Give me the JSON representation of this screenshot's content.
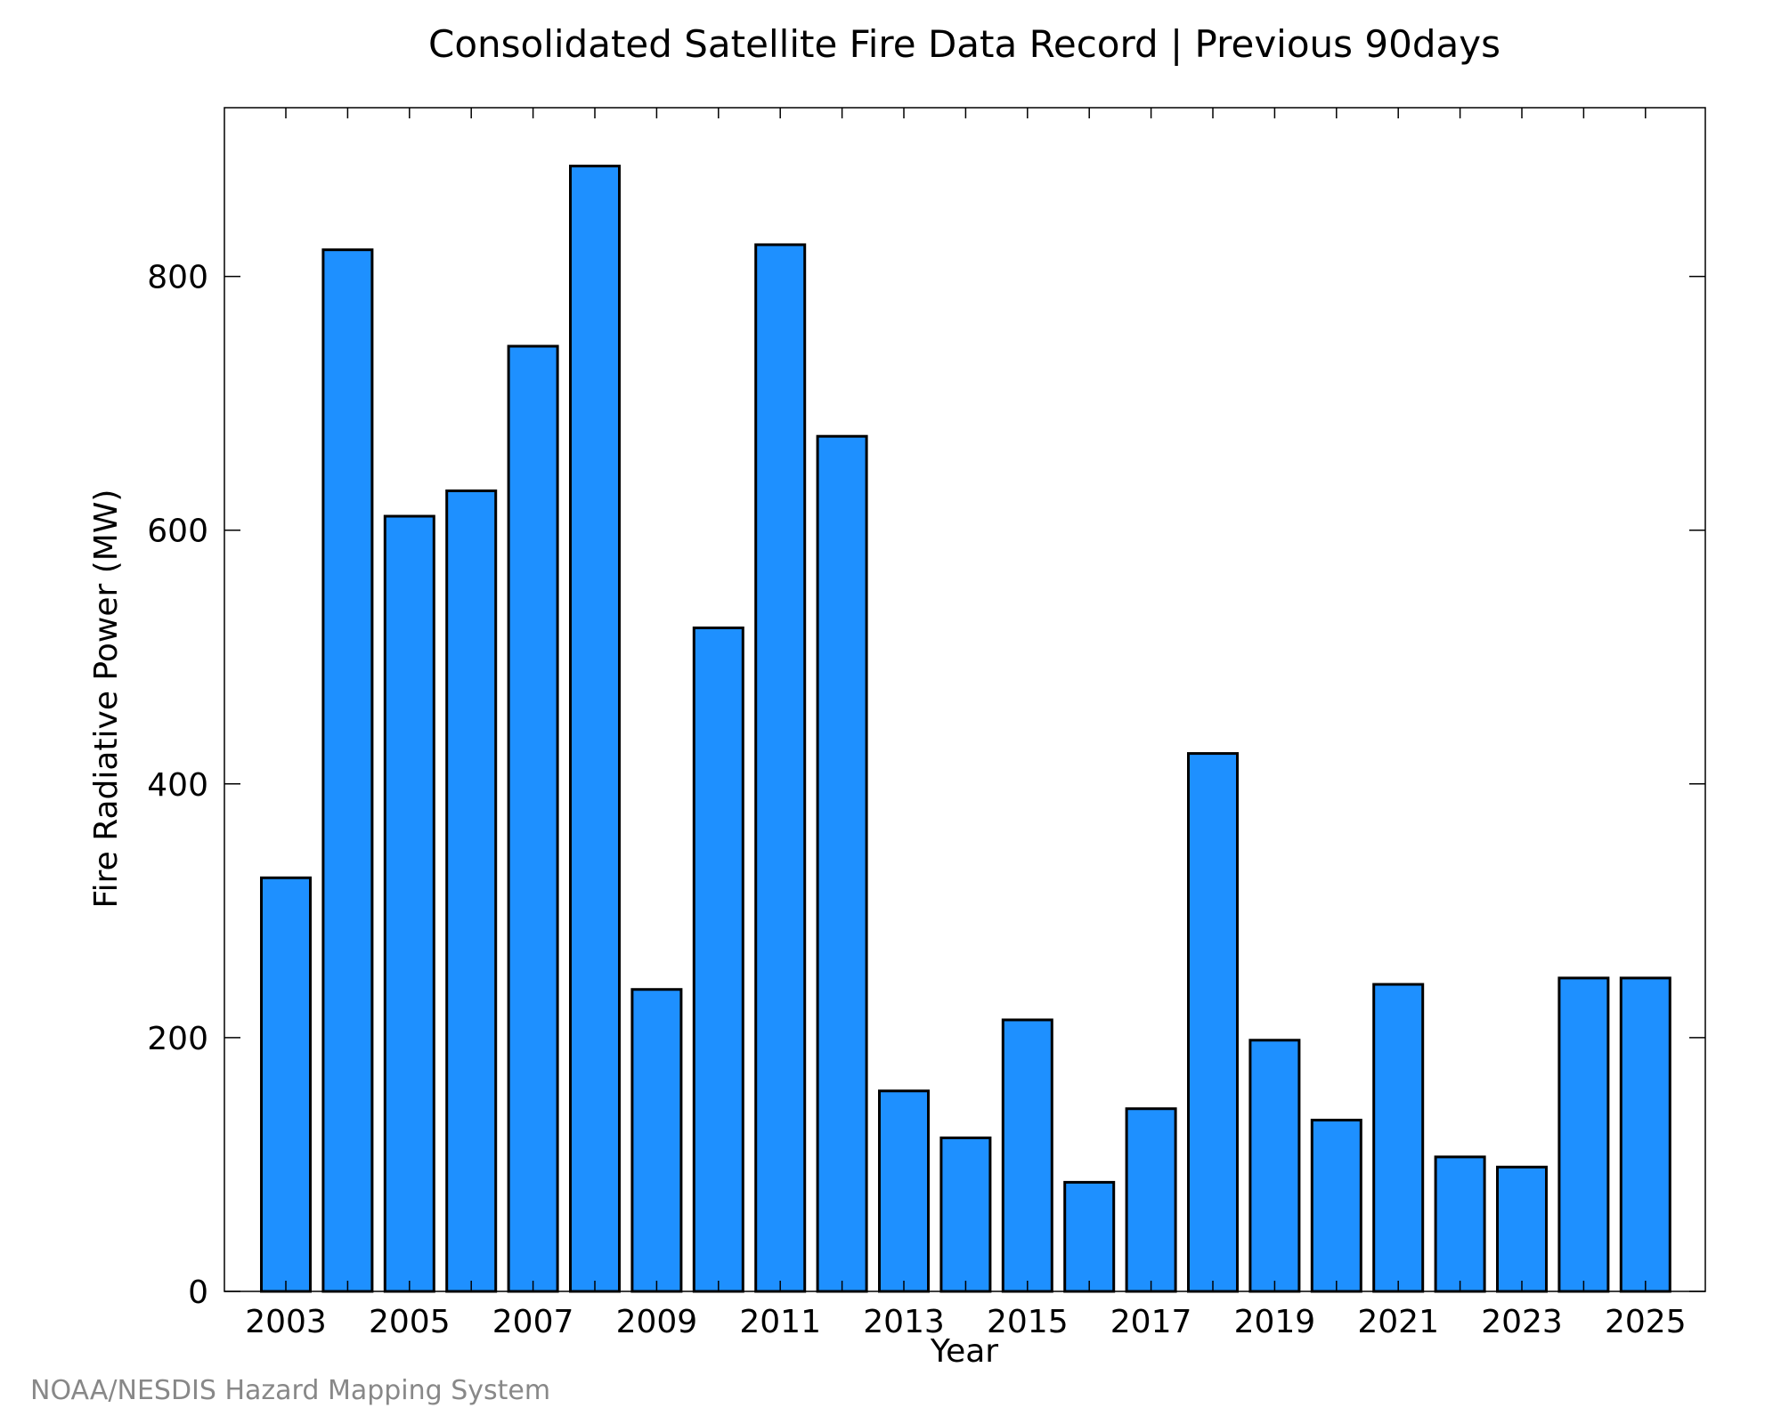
{
  "chart_data": {
    "type": "bar",
    "title": "Consolidated Satellite Fire Data Record | Previous 90days",
    "xlabel": "Year",
    "ylabel": "Fire Radiative Power (MW)",
    "categories": [
      "2003",
      "2004",
      "2005",
      "2006",
      "2007",
      "2008",
      "2009",
      "2010",
      "2011",
      "2012",
      "2013",
      "2014",
      "2015",
      "2016",
      "2017",
      "2018",
      "2019",
      "2020",
      "2021",
      "2022",
      "2023",
      "2024",
      "2025"
    ],
    "values": [
      326,
      821,
      611,
      631,
      745,
      887,
      238,
      523,
      825,
      674,
      158,
      121,
      214,
      86,
      144,
      424,
      198,
      135,
      242,
      106,
      98,
      247,
      247
    ],
    "x_tick_labels": [
      "2003",
      "2005",
      "2007",
      "2009",
      "2011",
      "2013",
      "2015",
      "2017",
      "2019",
      "2021",
      "2023",
      "2025"
    ],
    "y_ticks": [
      0,
      200,
      400,
      600,
      800
    ],
    "ylim": [
      0,
      933
    ],
    "grid": false,
    "bar_color": "#1e90ff",
    "edge_color": "#000000"
  },
  "footer": {
    "credit": "NOAA/NESDIS Hazard Mapping System"
  }
}
